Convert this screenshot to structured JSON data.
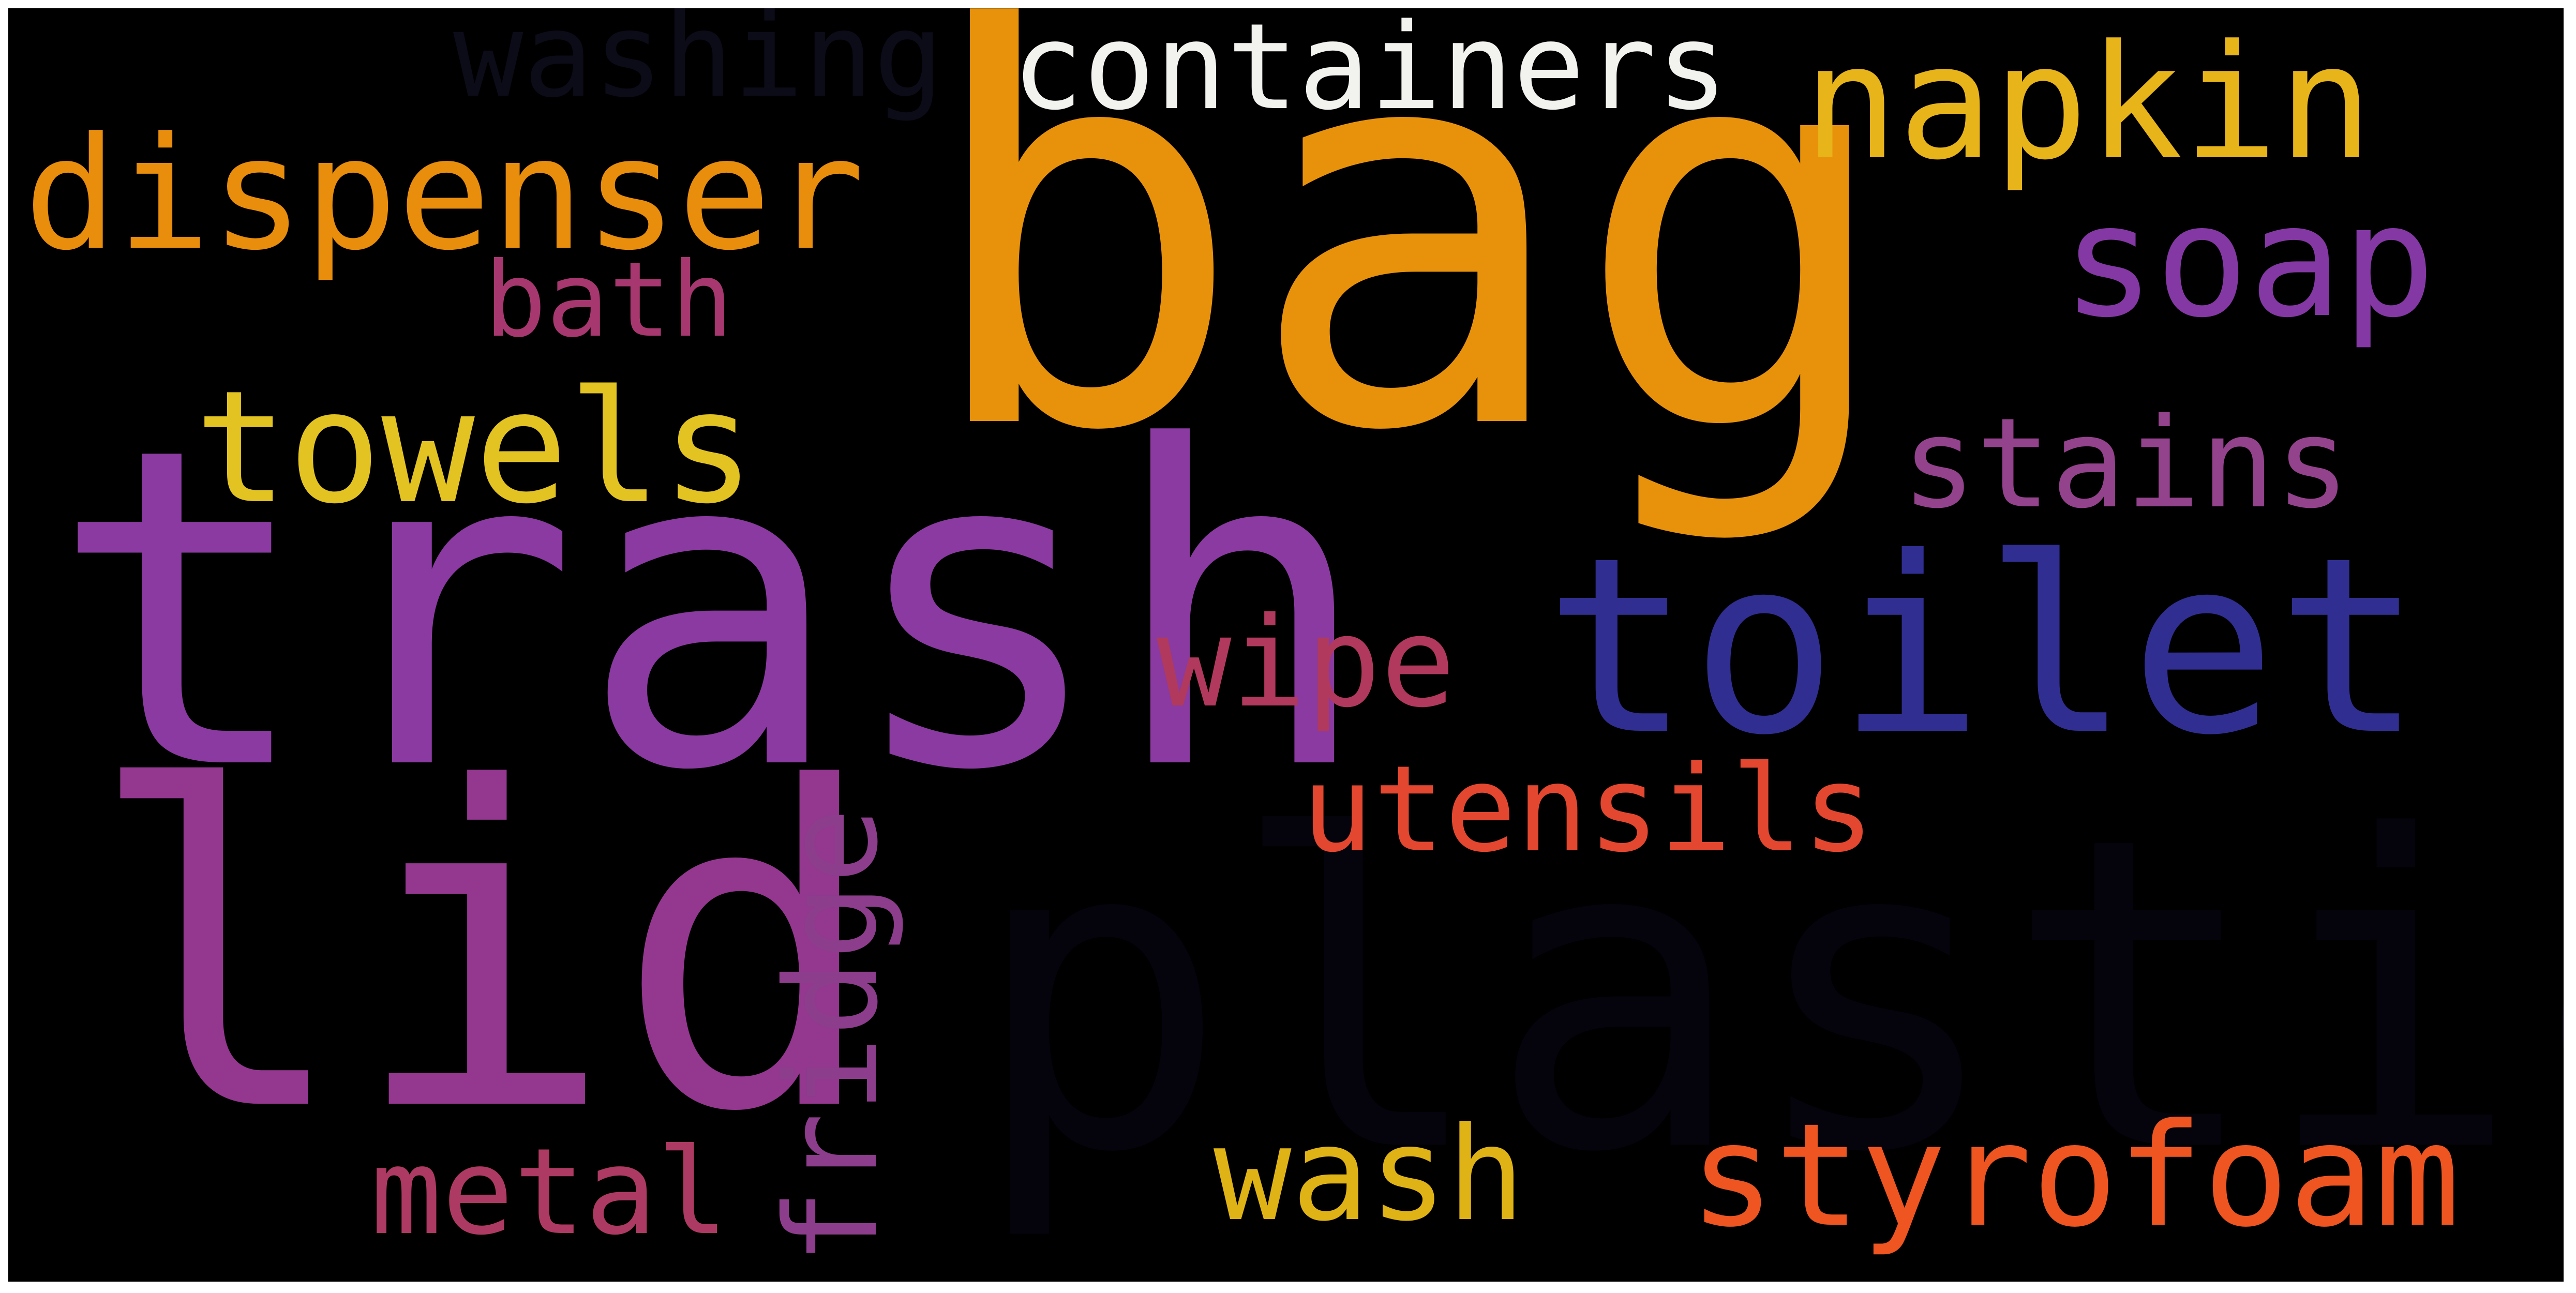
{
  "wordcloud": {
    "background": "#000000",
    "words": [
      {
        "key": "bag",
        "text": "bag",
        "color": "#e8920c"
      },
      {
        "key": "trash",
        "text": "trash",
        "color": "#8a3aa0"
      },
      {
        "key": "plastic",
        "text": "plastic",
        "color": "#05040d"
      },
      {
        "key": "lid",
        "text": "lid",
        "color": "#93378f"
      },
      {
        "key": "toilet",
        "text": "toilet",
        "color": "#302e90"
      },
      {
        "key": "dispenser",
        "text": "dispenser",
        "color": "#e88d0c"
      },
      {
        "key": "containers",
        "text": "containers",
        "color": "#f2f2ee"
      },
      {
        "key": "napkin",
        "text": "napkin",
        "color": "#e7b41a"
      },
      {
        "key": "washing",
        "text": "washing",
        "color": "#0c0b18"
      },
      {
        "key": "soap",
        "text": "soap",
        "color": "#8438a4"
      },
      {
        "key": "towels",
        "text": "towels",
        "color": "#e2c322"
      },
      {
        "key": "bath",
        "text": "bath",
        "color": "#a6386f"
      },
      {
        "key": "stains",
        "text": "stains",
        "color": "#93428c"
      },
      {
        "key": "wipe",
        "text": "wipe",
        "color": "#b0395d"
      },
      {
        "key": "utensils",
        "text": "utensils",
        "color": "#e3472f"
      },
      {
        "key": "fridge",
        "text": "fridge",
        "color": "#8c3d8b"
      },
      {
        "key": "metal",
        "text": "metal",
        "color": "#ad3a62"
      },
      {
        "key": "wash",
        "text": "wash",
        "color": "#dfb315"
      },
      {
        "key": "styrofoam",
        "text": "styrofoam",
        "color": "#ef5520"
      }
    ]
  }
}
